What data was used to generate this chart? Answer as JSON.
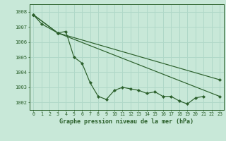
{
  "title": "Graphe pression niveau de la mer (hPa)",
  "xlabel_hours": [
    0,
    1,
    2,
    3,
    4,
    5,
    6,
    7,
    8,
    9,
    10,
    11,
    12,
    13,
    14,
    15,
    16,
    17,
    18,
    19,
    20,
    21,
    22,
    23
  ],
  "line1": [
    1007.8,
    1007.2,
    null,
    1006.6,
    1006.7,
    1005.0,
    1004.6,
    1003.3,
    1002.4,
    1002.2,
    1002.8,
    1003.0,
    1002.9,
    1002.8,
    1002.6,
    1002.7,
    1002.4,
    1002.4,
    1002.1,
    1001.9,
    1002.3,
    1002.4,
    null,
    null
  ],
  "line2": [
    1007.8,
    null,
    null,
    1006.6,
    null,
    null,
    null,
    null,
    null,
    null,
    null,
    null,
    null,
    null,
    null,
    null,
    null,
    null,
    null,
    null,
    null,
    null,
    null,
    1003.5
  ],
  "line3": [
    1007.8,
    null,
    null,
    1006.6,
    null,
    null,
    null,
    null,
    null,
    null,
    null,
    null,
    null,
    null,
    null,
    null,
    null,
    null,
    null,
    null,
    null,
    null,
    null,
    1002.4
  ],
  "bg_color": "#c8e8d8",
  "grid_color": "#b0d8c8",
  "line_color": "#2a5f2a",
  "marker": "D",
  "marker_size": 2.2,
  "ylim": [
    1001.5,
    1008.5
  ],
  "xlim": [
    -0.5,
    23.5
  ],
  "yticks": [
    1002,
    1003,
    1004,
    1005,
    1006,
    1007,
    1008
  ],
  "title_fontsize": 6.0,
  "tick_fontsize": 4.8,
  "linewidth": 0.85
}
